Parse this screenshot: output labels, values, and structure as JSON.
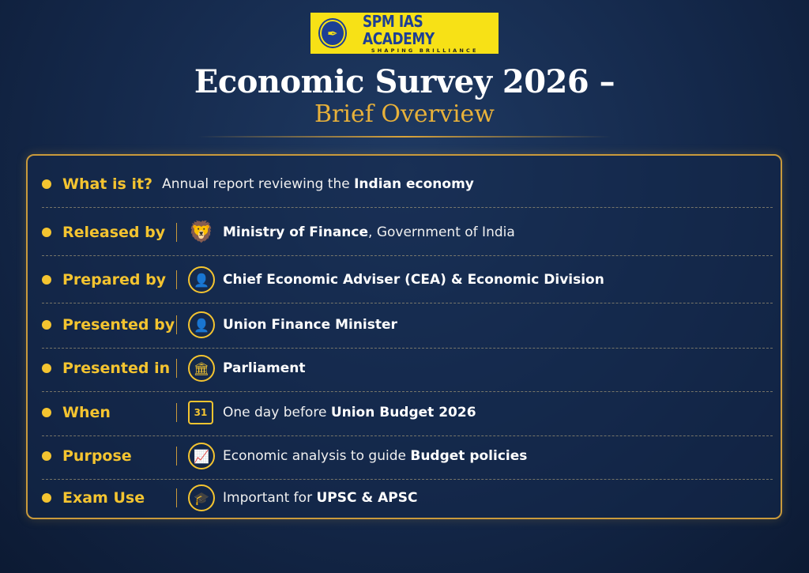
{
  "logo": {
    "name": "SPM IAS ACADEMY",
    "tagline": "SHAPING BRILLIANCE"
  },
  "title": "Economic Survey 2026 –",
  "subtitle": "Brief Overview",
  "colors": {
    "accent": "#f4c430",
    "background": "#14284a",
    "border": "#c99a3c",
    "logo_bg": "#f7e116",
    "logo_text": "#1d3f94"
  },
  "rows": [
    {
      "label": "What is it?",
      "icon": "",
      "pre": "Annual report reviewing the ",
      "bold": "Indian economy",
      "post": ""
    },
    {
      "label": "Released by",
      "icon": "national-emblem-icon",
      "pre": "",
      "bold": "Ministry of Finance",
      "post": ", Government of India"
    },
    {
      "label": "Prepared by",
      "icon": "adviser-person-icon",
      "pre": "",
      "bold": "Chief Economic Adviser (CEA) & Economic Division",
      "post": ""
    },
    {
      "label": "Presented by",
      "icon": "minister-person-icon",
      "pre": "",
      "bold": "Union Finance Minister",
      "post": ""
    },
    {
      "label": "Presented in",
      "icon": "parliament-building-icon",
      "pre": "",
      "bold": "Parliament",
      "post": ""
    },
    {
      "label": "When",
      "icon": "calendar-icon",
      "calendar_day": "31",
      "pre": "One day before ",
      "bold": "Union Budget 2026",
      "post": ""
    },
    {
      "label": "Purpose",
      "icon": "growth-chart-icon",
      "pre": "Economic analysis to guide ",
      "bold": "Budget policies",
      "post": ""
    },
    {
      "label": "Exam Use",
      "icon": "graduation-cap-icon",
      "pre": "Important for ",
      "bold": "UPSC & APSC",
      "post": ""
    }
  ]
}
